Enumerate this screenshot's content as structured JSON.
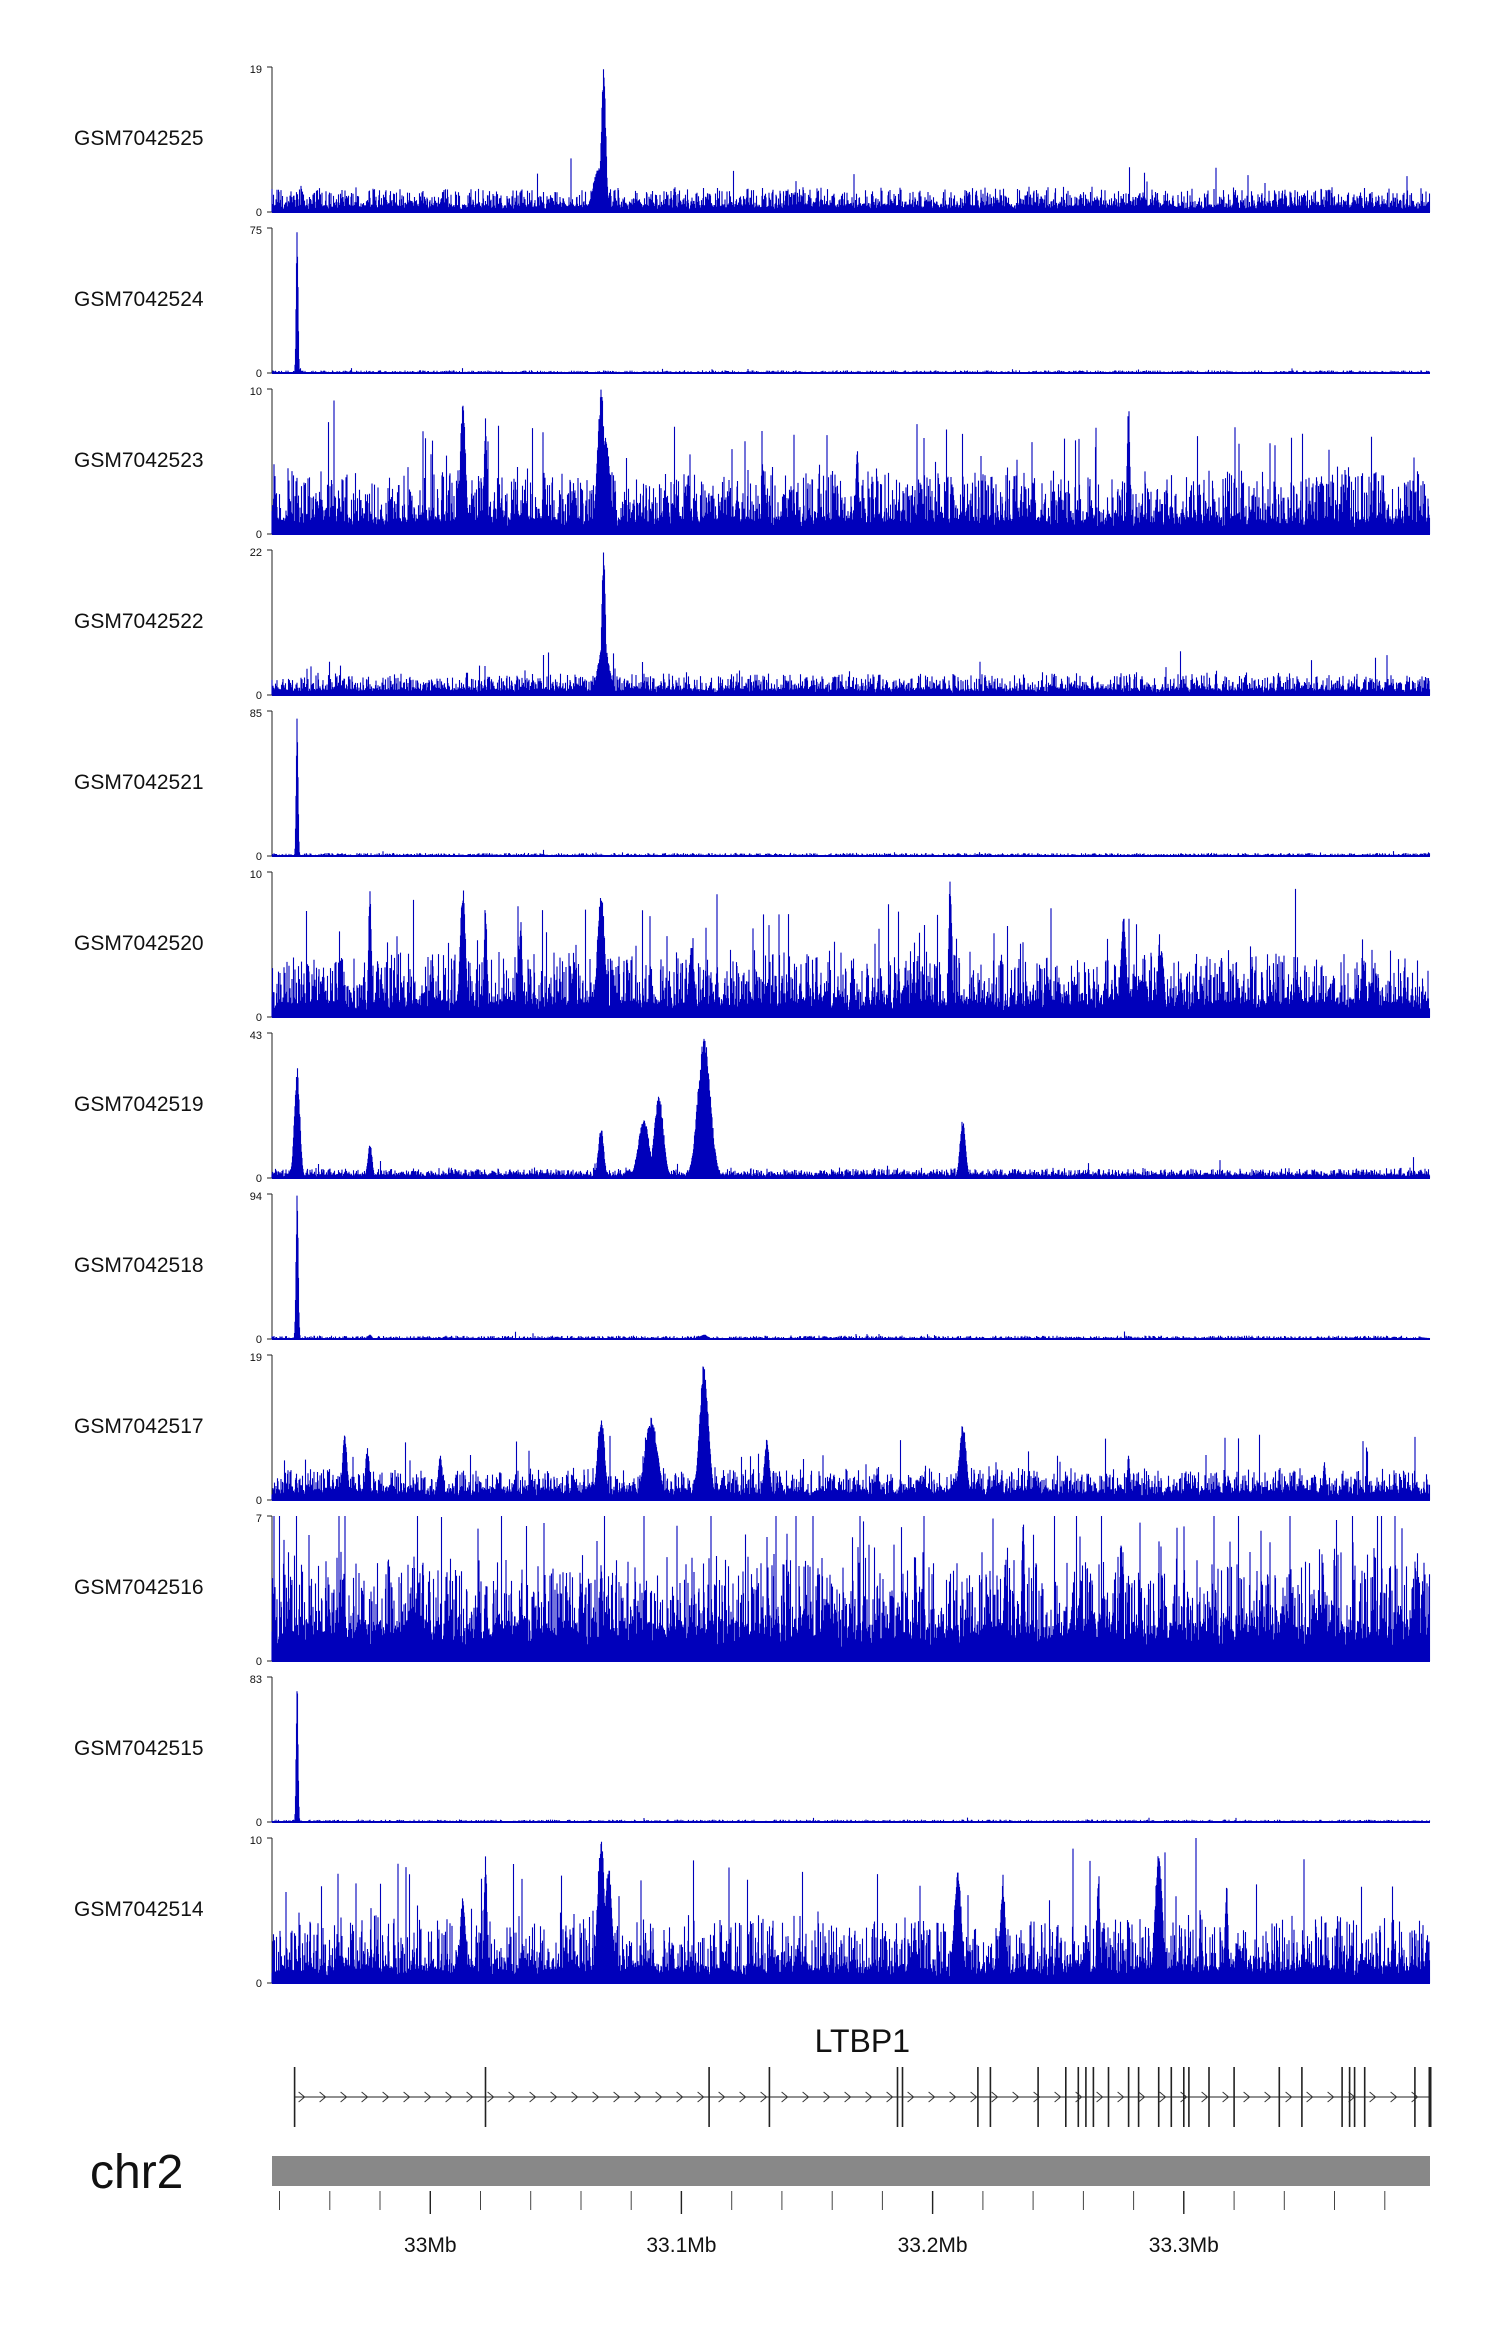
{
  "chart_data": {
    "type": "area",
    "region": {
      "chromosome": "chr2",
      "x_range_mb": [
        32.937,
        33.398
      ]
    },
    "axis": {
      "ticks": [
        {
          "mb": 33.0,
          "label": "33Mb"
        },
        {
          "mb": 33.1,
          "label": "33.1Mb"
        },
        {
          "mb": 33.2,
          "label": "33.2Mb"
        },
        {
          "mb": 33.3,
          "label": "33.3Mb"
        }
      ]
    },
    "gene": {
      "name": "LTBP1",
      "strand": "+",
      "start_mb": 32.946,
      "end_mb": 33.398,
      "exons_mb": [
        32.946,
        33.022,
        33.111,
        33.135,
        33.186,
        33.188,
        33.218,
        33.223,
        33.242,
        33.253,
        33.258,
        33.261,
        33.264,
        33.27,
        33.278,
        33.282,
        33.29,
        33.295,
        33.3,
        33.302,
        33.31,
        33.32,
        33.338,
        33.347,
        33.363,
        33.366,
        33.368,
        33.372,
        33.392,
        33.398
      ]
    },
    "colors": {
      "signal": "#0000bb",
      "gene": "#222222",
      "ideogram": "#888888"
    },
    "series": [
      {
        "name": "GSM7042525",
        "ymax": 19,
        "ymin": 0,
        "baseline": 0.8,
        "noise": 2.4,
        "spike_rate": 0.015,
        "peaks": [
          {
            "mb": 33.069,
            "height": 19,
            "width": 0.0012
          },
          {
            "mb": 33.067,
            "height": 6,
            "width": 0.003
          }
        ]
      },
      {
        "name": "GSM7042524",
        "ymax": 75,
        "ymin": 0,
        "baseline": 0.2,
        "noise": 1.2,
        "spike_rate": 0.008,
        "peaks": [
          {
            "mb": 32.947,
            "height": 75,
            "width": 0.0005
          }
        ]
      },
      {
        "name": "GSM7042523",
        "ymax": 10,
        "ymin": 0,
        "baseline": 1.0,
        "noise": 3.5,
        "spike_rate": 0.04,
        "peaks": [
          {
            "mb": 33.013,
            "height": 9,
            "width": 0.0015
          },
          {
            "mb": 33.022,
            "height": 8,
            "width": 0.0008
          },
          {
            "mb": 33.068,
            "height": 10,
            "width": 0.002
          },
          {
            "mb": 33.07,
            "height": 7,
            "width": 0.002
          },
          {
            "mb": 33.278,
            "height": 9,
            "width": 0.0008
          },
          {
            "mb": 33.17,
            "height": 6,
            "width": 0.0008
          }
        ]
      },
      {
        "name": "GSM7042522",
        "ymax": 22,
        "ymin": 0,
        "baseline": 0.8,
        "noise": 2.5,
        "spike_rate": 0.015,
        "peaks": [
          {
            "mb": 33.069,
            "height": 22,
            "width": 0.001
          },
          {
            "mb": 33.069,
            "height": 8,
            "width": 0.003
          }
        ]
      },
      {
        "name": "GSM7042521",
        "ymax": 85,
        "ymin": 0,
        "baseline": 0.3,
        "noise": 1.5,
        "spike_rate": 0.006,
        "peaks": [
          {
            "mb": 32.947,
            "height": 85,
            "width": 0.0005
          }
        ]
      },
      {
        "name": "GSM7042520",
        "ymax": 10,
        "ymin": 0,
        "baseline": 1.0,
        "noise": 3.5,
        "spike_rate": 0.04,
        "peaks": [
          {
            "mb": 32.976,
            "height": 9,
            "width": 0.0008
          },
          {
            "mb": 33.013,
            "height": 9,
            "width": 0.0015
          },
          {
            "mb": 33.022,
            "height": 8,
            "width": 0.0008
          },
          {
            "mb": 33.036,
            "height": 7,
            "width": 0.0008
          },
          {
            "mb": 33.068,
            "height": 9,
            "width": 0.002
          },
          {
            "mb": 33.104,
            "height": 5,
            "width": 0.0015
          },
          {
            "mb": 33.207,
            "height": 10,
            "width": 0.0008
          },
          {
            "mb": 33.276,
            "height": 7,
            "width": 0.0015
          },
          {
            "mb": 33.291,
            "height": 5,
            "width": 0.0015
          }
        ]
      },
      {
        "name": "GSM7042519",
        "ymax": 43,
        "ymin": 0,
        "baseline": 1.0,
        "noise": 2.0,
        "spike_rate": 0.01,
        "peaks": [
          {
            "mb": 32.947,
            "height": 33,
            "width": 0.0015
          },
          {
            "mb": 32.976,
            "height": 10,
            "width": 0.0012
          },
          {
            "mb": 33.068,
            "height": 15,
            "width": 0.0015
          },
          {
            "mb": 33.085,
            "height": 18,
            "width": 0.003
          },
          {
            "mb": 33.091,
            "height": 25,
            "width": 0.0025
          },
          {
            "mb": 33.109,
            "height": 42,
            "width": 0.0035
          },
          {
            "mb": 33.212,
            "height": 18,
            "width": 0.0015
          }
        ]
      },
      {
        "name": "GSM7042518",
        "ymax": 94,
        "ymin": 0,
        "baseline": 0.4,
        "noise": 1.8,
        "spike_rate": 0.008,
        "peaks": [
          {
            "mb": 32.947,
            "height": 94,
            "width": 0.0006
          },
          {
            "mb": 32.976,
            "height": 3,
            "width": 0.001
          },
          {
            "mb": 33.109,
            "height": 3,
            "width": 0.002
          }
        ]
      },
      {
        "name": "GSM7042517",
        "ymax": 19,
        "ymin": 0,
        "baseline": 1.2,
        "noise": 3.0,
        "spike_rate": 0.02,
        "peaks": [
          {
            "mb": 32.966,
            "height": 9,
            "width": 0.0012
          },
          {
            "mb": 32.975,
            "height": 7,
            "width": 0.0012
          },
          {
            "mb": 33.004,
            "height": 6,
            "width": 0.0012
          },
          {
            "mb": 33.068,
            "height": 11,
            "width": 0.002
          },
          {
            "mb": 33.088,
            "height": 11,
            "width": 0.0035
          },
          {
            "mb": 33.109,
            "height": 18,
            "width": 0.0025
          },
          {
            "mb": 33.134,
            "height": 8,
            "width": 0.0015
          },
          {
            "mb": 33.212,
            "height": 10,
            "width": 0.002
          },
          {
            "mb": 33.278,
            "height": 6,
            "width": 0.0008
          },
          {
            "mb": 33.356,
            "height": 5,
            "width": 0.0008
          }
        ]
      },
      {
        "name": "GSM7042516",
        "ymax": 7,
        "ymin": 0,
        "baseline": 1.5,
        "noise": 3.6,
        "spike_rate": 0.06,
        "peaks": [
          {
            "mb": 33.236,
            "height": 7,
            "width": 0.0008
          },
          {
            "mb": 33.229,
            "height": 5,
            "width": 0.001
          },
          {
            "mb": 33.275,
            "height": 6,
            "width": 0.0008
          },
          {
            "mb": 33.068,
            "height": 5,
            "width": 0.0008
          }
        ]
      },
      {
        "name": "GSM7042515",
        "ymax": 83,
        "ymin": 0,
        "baseline": 0.2,
        "noise": 1.2,
        "spike_rate": 0.005,
        "peaks": [
          {
            "mb": 32.947,
            "height": 83,
            "width": 0.0005
          }
        ]
      },
      {
        "name": "GSM7042514",
        "ymax": 10,
        "ymin": 0,
        "baseline": 1.0,
        "noise": 3.6,
        "spike_rate": 0.04,
        "peaks": [
          {
            "mb": 33.013,
            "height": 6,
            "width": 0.0015
          },
          {
            "mb": 33.022,
            "height": 9,
            "width": 0.0008
          },
          {
            "mb": 33.068,
            "height": 10,
            "width": 0.002
          },
          {
            "mb": 33.071,
            "height": 8,
            "width": 0.002
          },
          {
            "mb": 33.21,
            "height": 8,
            "width": 0.002
          },
          {
            "mb": 33.228,
            "height": 7,
            "width": 0.0015
          },
          {
            "mb": 33.266,
            "height": 8,
            "width": 0.0008
          },
          {
            "mb": 33.29,
            "height": 9,
            "width": 0.002
          },
          {
            "mb": 33.317,
            "height": 7,
            "width": 0.0008
          }
        ]
      }
    ]
  }
}
